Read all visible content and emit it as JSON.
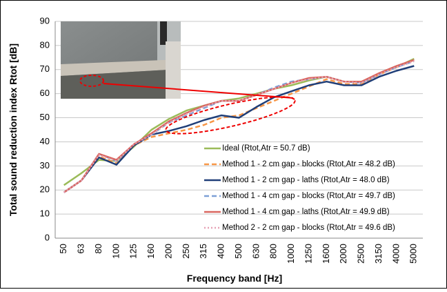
{
  "chart_data": {
    "type": "line",
    "ylabel": "Total sound reduction index Rtot [dB]",
    "xlabel": "Frequency band [Hz]",
    "categories": [
      "50",
      "63",
      "80",
      "100",
      "125",
      "160",
      "200",
      "250",
      "315",
      "400",
      "500",
      "630",
      "800",
      "1000",
      "1250",
      "1600",
      "2000",
      "2500",
      "3150",
      "4000",
      "5000"
    ],
    "ylim": [
      0,
      90
    ],
    "yticks": [
      0,
      10,
      20,
      30,
      40,
      50,
      60,
      70,
      80,
      90
    ],
    "grid": true,
    "series": [
      {
        "name": "Ideal (Rtot,Atr = 50.7 dB)",
        "color": "#9bbb59",
        "dash": "solid",
        "values": [
          22,
          27,
          32.5,
          32,
          38,
          45,
          49.5,
          53,
          55,
          57,
          58,
          60,
          62,
          63.5,
          65.5,
          67,
          65,
          65,
          68,
          71,
          74.5
        ]
      },
      {
        "name": "Method 1 - 2 cm gap - blocks (Rtot,Atr = 48.2 dB)",
        "color": "#f79646",
        "dash": "dashed",
        "values": [
          19,
          24,
          34,
          31,
          38.5,
          42,
          43.5,
          45,
          47,
          50,
          51,
          54,
          57,
          60,
          63,
          66,
          64,
          64,
          68,
          71,
          74
        ]
      },
      {
        "name": "Method 1 - 2 cm gap - laths (Rtot,Atr = 48.0 dB)",
        "color": "#1f3e78",
        "dash": "solid",
        "values": [
          19,
          24,
          33.5,
          30.5,
          38.5,
          43,
          44.5,
          46.5,
          49,
          51,
          50,
          54.5,
          58.5,
          61,
          63.5,
          65,
          63.5,
          63.5,
          67,
          69.5,
          71.5
        ]
      },
      {
        "name": "Method 1 - 4 cm gap - blocks (Rtot,Atr = 49.7 dB)",
        "color": "#7c9fd6",
        "dash": "dashed",
        "values": [
          19,
          24,
          35,
          32,
          39,
          43,
          48,
          51,
          54,
          57,
          57,
          59.5,
          62.5,
          65,
          66,
          67,
          65,
          64.5,
          68,
          71,
          73.5
        ]
      },
      {
        "name": "Method 1 - 4 cm gap - laths (Rtot,Atr = 49.9 dB)",
        "color": "#d9665f",
        "dash": "solid",
        "values": [
          19,
          24,
          35,
          32.5,
          39,
          43.5,
          48.5,
          52,
          55,
          57,
          57,
          59.5,
          62,
          64.5,
          66.5,
          67,
          65,
          65,
          68.5,
          71.5,
          74
        ]
      },
      {
        "name": "Method 2 - 2 cm gap - blocks (Rtot,Atr = 49.6 dB)",
        "color": "#e6a0b4",
        "dash": "dotted",
        "values": [
          19,
          24,
          34.5,
          32,
          39,
          43,
          48,
          51.5,
          54.5,
          57,
          57,
          59.5,
          62,
          64.5,
          66,
          67,
          65,
          64.5,
          68,
          71,
          73.5
        ]
      }
    ]
  }
}
